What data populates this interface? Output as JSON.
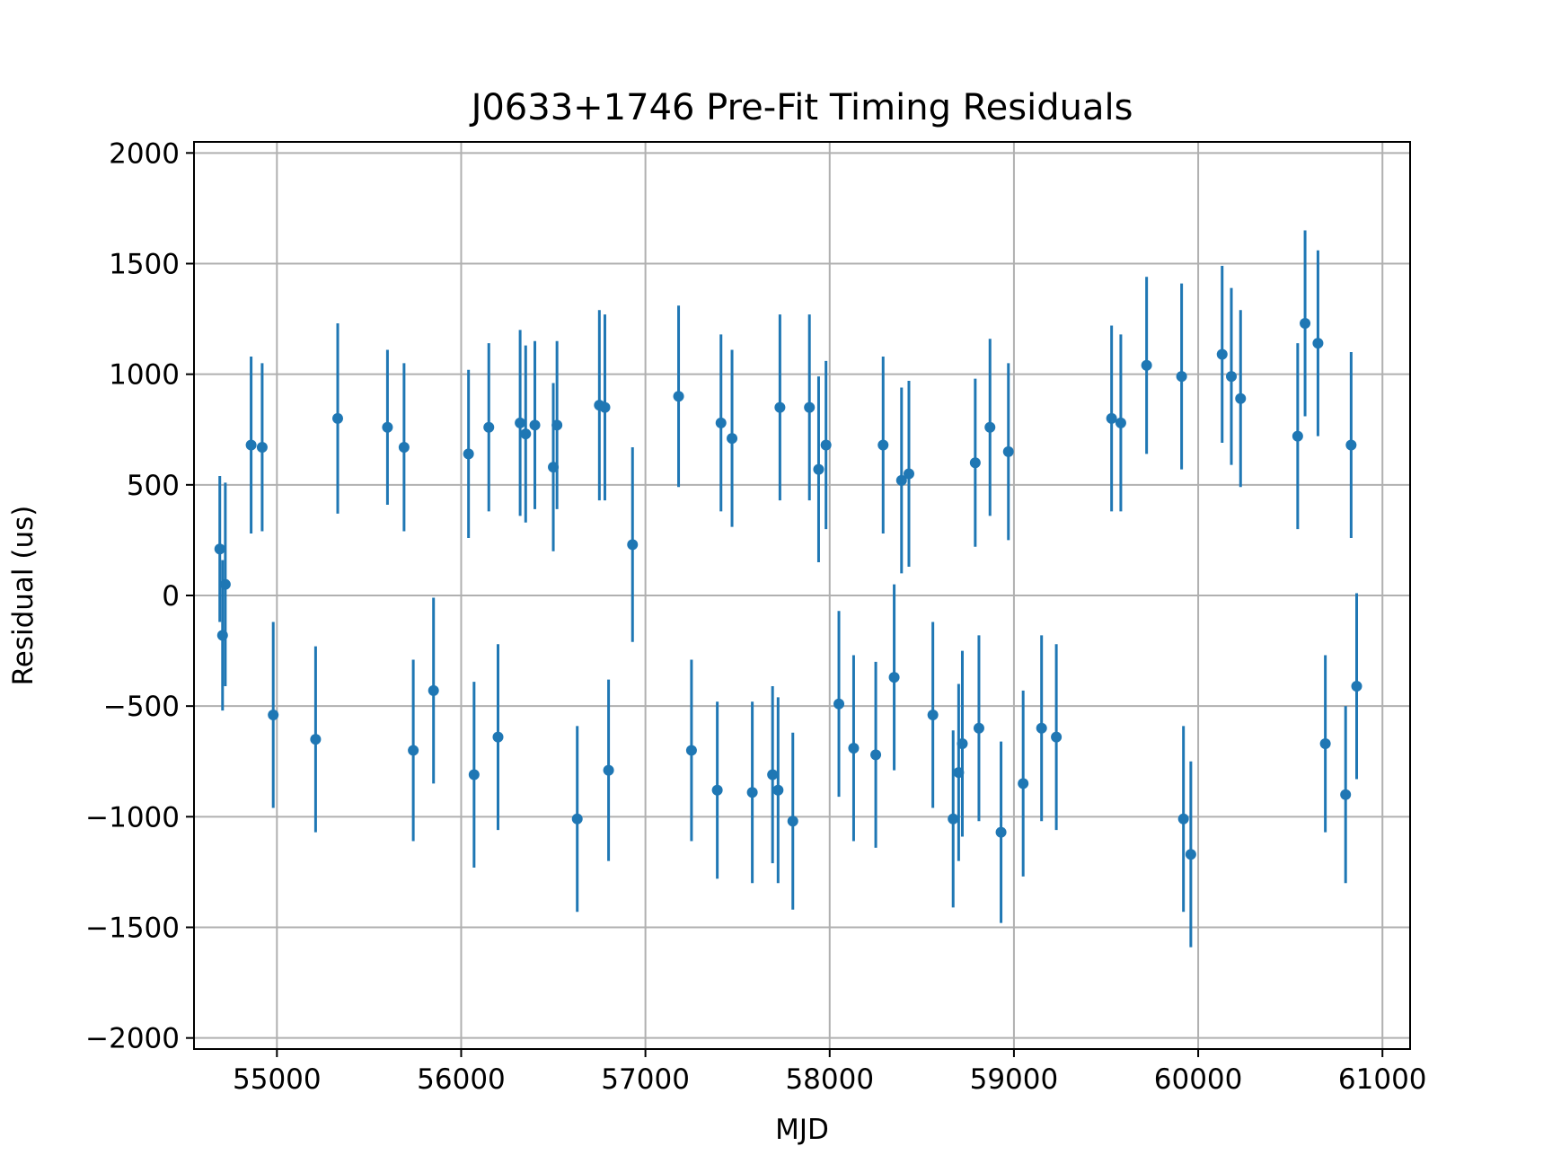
{
  "chart_data": {
    "type": "scatter",
    "title": "J0633+1746 Pre-Fit Timing Residuals",
    "xlabel": "MJD",
    "ylabel": "Residual (us)",
    "xlim": [
      54550,
      61150
    ],
    "ylim": [
      -2050,
      2050
    ],
    "xticks": [
      55000,
      56000,
      57000,
      58000,
      59000,
      60000,
      61000
    ],
    "xtick_labels": [
      "55000",
      "56000",
      "57000",
      "58000",
      "59000",
      "60000",
      "61000"
    ],
    "yticks": [
      -2000,
      -1500,
      -1000,
      -500,
      0,
      500,
      1000,
      1500,
      2000
    ],
    "ytick_labels": [
      "−2000",
      "−1500",
      "−1000",
      "−500",
      "0",
      "500",
      "1000",
      "1500",
      "2000"
    ],
    "grid": true,
    "color": "#1f77b4",
    "series": [
      {
        "marker": "point-with-error-bars",
        "points": [
          {
            "x": 54690,
            "y": 210,
            "err": 330
          },
          {
            "x": 54705,
            "y": -180,
            "err": 340
          },
          {
            "x": 54720,
            "y": 50,
            "err": 460
          },
          {
            "x": 54860,
            "y": 680,
            "err": 400
          },
          {
            "x": 54920,
            "y": 670,
            "err": 380
          },
          {
            "x": 54980,
            "y": -540,
            "err": 420
          },
          {
            "x": 55210,
            "y": -650,
            "err": 420
          },
          {
            "x": 55330,
            "y": 800,
            "err": 430
          },
          {
            "x": 55600,
            "y": 760,
            "err": 350
          },
          {
            "x": 55690,
            "y": 670,
            "err": 380
          },
          {
            "x": 55740,
            "y": -700,
            "err": 410
          },
          {
            "x": 55850,
            "y": -430,
            "err": 420
          },
          {
            "x": 56040,
            "y": 640,
            "err": 380
          },
          {
            "x": 56070,
            "y": -810,
            "err": 420
          },
          {
            "x": 56150,
            "y": 760,
            "err": 380
          },
          {
            "x": 56200,
            "y": -640,
            "err": 420
          },
          {
            "x": 56320,
            "y": 780,
            "err": 420
          },
          {
            "x": 56350,
            "y": 730,
            "err": 400
          },
          {
            "x": 56400,
            "y": 770,
            "err": 380
          },
          {
            "x": 56500,
            "y": 580,
            "err": 380
          },
          {
            "x": 56520,
            "y": 770,
            "err": 380
          },
          {
            "x": 56630,
            "y": -1010,
            "err": 420
          },
          {
            "x": 56750,
            "y": 860,
            "err": 430
          },
          {
            "x": 56780,
            "y": 850,
            "err": 420
          },
          {
            "x": 56800,
            "y": -790,
            "err": 410
          },
          {
            "x": 56930,
            "y": 230,
            "err": 440
          },
          {
            "x": 57180,
            "y": 900,
            "err": 410
          },
          {
            "x": 57250,
            "y": -700,
            "err": 410
          },
          {
            "x": 57390,
            "y": -880,
            "err": 400
          },
          {
            "x": 57410,
            "y": 780,
            "err": 400
          },
          {
            "x": 57470,
            "y": 710,
            "err": 400
          },
          {
            "x": 57580,
            "y": -890,
            "err": 410
          },
          {
            "x": 57690,
            "y": -810,
            "err": 400
          },
          {
            "x": 57720,
            "y": -880,
            "err": 420
          },
          {
            "x": 57730,
            "y": 850,
            "err": 420
          },
          {
            "x": 57800,
            "y": -1020,
            "err": 400
          },
          {
            "x": 57890,
            "y": 850,
            "err": 420
          },
          {
            "x": 57940,
            "y": 570,
            "err": 420
          },
          {
            "x": 57980,
            "y": 680,
            "err": 380
          },
          {
            "x": 58050,
            "y": -490,
            "err": 420
          },
          {
            "x": 58130,
            "y": -690,
            "err": 420
          },
          {
            "x": 58250,
            "y": -720,
            "err": 420
          },
          {
            "x": 58290,
            "y": 680,
            "err": 400
          },
          {
            "x": 58350,
            "y": -370,
            "err": 420
          },
          {
            "x": 58390,
            "y": 520,
            "err": 420
          },
          {
            "x": 58430,
            "y": 550,
            "err": 420
          },
          {
            "x": 58560,
            "y": -540,
            "err": 420
          },
          {
            "x": 58670,
            "y": -1010,
            "err": 400
          },
          {
            "x": 58700,
            "y": -800,
            "err": 400
          },
          {
            "x": 58720,
            "y": -670,
            "err": 420
          },
          {
            "x": 58790,
            "y": 600,
            "err": 380
          },
          {
            "x": 58810,
            "y": -600,
            "err": 420
          },
          {
            "x": 58870,
            "y": 760,
            "err": 400
          },
          {
            "x": 58930,
            "y": -1070,
            "err": 410
          },
          {
            "x": 58970,
            "y": 650,
            "err": 400
          },
          {
            "x": 59050,
            "y": -850,
            "err": 420
          },
          {
            "x": 59150,
            "y": -600,
            "err": 420
          },
          {
            "x": 59230,
            "y": -640,
            "err": 420
          },
          {
            "x": 59530,
            "y": 800,
            "err": 420
          },
          {
            "x": 59580,
            "y": 780,
            "err": 400
          },
          {
            "x": 59720,
            "y": 1040,
            "err": 400
          },
          {
            "x": 59910,
            "y": 990,
            "err": 420
          },
          {
            "x": 59920,
            "y": -1010,
            "err": 420
          },
          {
            "x": 59960,
            "y": -1170,
            "err": 420
          },
          {
            "x": 60130,
            "y": 1090,
            "err": 400
          },
          {
            "x": 60180,
            "y": 990,
            "err": 400
          },
          {
            "x": 60230,
            "y": 890,
            "err": 400
          },
          {
            "x": 60540,
            "y": 720,
            "err": 420
          },
          {
            "x": 60580,
            "y": 1230,
            "err": 420
          },
          {
            "x": 60650,
            "y": 1140,
            "err": 420
          },
          {
            "x": 60690,
            "y": -670,
            "err": 400
          },
          {
            "x": 60800,
            "y": -900,
            "err": 400
          },
          {
            "x": 60830,
            "y": 680,
            "err": 420
          },
          {
            "x": 60860,
            "y": -410,
            "err": 420
          }
        ]
      }
    ]
  }
}
